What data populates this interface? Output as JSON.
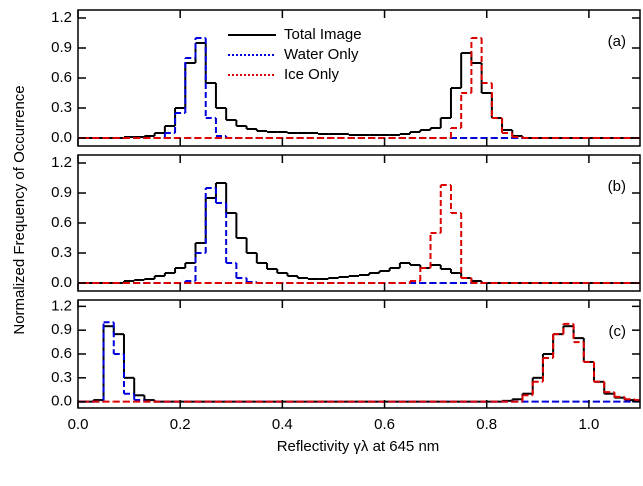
{
  "figure": {
    "xlabel": "Reflectivity γλ at 645 nm",
    "ylabel": "Normalized Frequency of Occurrence"
  },
  "chart_data": [
    {
      "type": "line",
      "panel_label": "(a)",
      "legend": true,
      "xtick_labels": false,
      "xlim": [
        0,
        1.1
      ],
      "ylim": [
        -0.08,
        1.28
      ],
      "xticks": [
        {
          "value": 0,
          "label": "0.0"
        },
        0.2,
        0.4,
        0.6,
        0.8,
        {
          "value": 1,
          "label": "1.0"
        }
      ],
      "yticks": [
        {
          "value": 0,
          "label": "0.0"
        },
        0.3,
        0.6,
        0.9,
        1.2
      ],
      "x": [
        0,
        0.02,
        0.04,
        0.06,
        0.08,
        0.1,
        0.12,
        0.14,
        0.16,
        0.18,
        0.2,
        0.22,
        0.24,
        0.26,
        0.28,
        0.3,
        0.32,
        0.34,
        0.36,
        0.38,
        0.4,
        0.42,
        0.44,
        0.46,
        0.48,
        0.5,
        0.52,
        0.54,
        0.56,
        0.58,
        0.6,
        0.62,
        0.64,
        0.66,
        0.68,
        0.7,
        0.72,
        0.74,
        0.76,
        0.78,
        0.8,
        0.82,
        0.84,
        0.86,
        0.88,
        0.9,
        0.92,
        0.94,
        0.96,
        0.98,
        1,
        1.02,
        1.04,
        1.06,
        1.08,
        1.1
      ],
      "series": [
        {
          "name": "Total Image",
          "color": "#000000",
          "linestyle": "solid",
          "values": [
            0,
            0,
            0,
            0,
            0,
            0.01,
            0.01,
            0.02,
            0.05,
            0.12,
            0.3,
            0.75,
            0.95,
            0.55,
            0.3,
            0.18,
            0.12,
            0.09,
            0.07,
            0.06,
            0.06,
            0.05,
            0.05,
            0.05,
            0.04,
            0.04,
            0.04,
            0.03,
            0.03,
            0.03,
            0.03,
            0.03,
            0.04,
            0.06,
            0.08,
            0.1,
            0.2,
            0.5,
            0.85,
            0.75,
            0.45,
            0.2,
            0.08,
            0.02,
            0,
            0,
            0,
            0,
            0,
            0,
            0,
            0,
            0,
            0,
            0,
            0
          ]
        },
        {
          "name": "Water Only",
          "color": "#0000dd",
          "linestyle": "dashed",
          "values": [
            0,
            0,
            0,
            0,
            0,
            0,
            0,
            0,
            0,
            0.05,
            0.25,
            0.8,
            1.0,
            0.2,
            0.02,
            0,
            0,
            0,
            0,
            0,
            0,
            0,
            0,
            0,
            0,
            0,
            0,
            0,
            0,
            0,
            0,
            0,
            0,
            0,
            0,
            0,
            0,
            0,
            0,
            0,
            0,
            0,
            0,
            0,
            0,
            0,
            0,
            0,
            0,
            0,
            0,
            0,
            0,
            0,
            0,
            0
          ]
        },
        {
          "name": "Ice Only",
          "color": "#dd0000",
          "linestyle": "dashed",
          "values": [
            0,
            0,
            0,
            0,
            0,
            0,
            0,
            0,
            0,
            0,
            0,
            0,
            0,
            0,
            0,
            0,
            0,
            0,
            0,
            0,
            0,
            0,
            0,
            0,
            0,
            0,
            0,
            0,
            0,
            0,
            0,
            0,
            0,
            0,
            0,
            0,
            0,
            0.1,
            0.45,
            1.0,
            0.55,
            0.2,
            0.05,
            0.01,
            0,
            0,
            0,
            0,
            0,
            0,
            0,
            0,
            0,
            0,
            0,
            0
          ]
        }
      ]
    },
    {
      "type": "line",
      "panel_label": "(b)",
      "legend": false,
      "xtick_labels": false,
      "xlim": [
        0,
        1.1
      ],
      "ylim": [
        -0.08,
        1.28
      ],
      "xticks": [
        {
          "value": 0,
          "label": "0.0"
        },
        0.2,
        0.4,
        0.6,
        0.8,
        {
          "value": 1,
          "label": "1.0"
        }
      ],
      "yticks": [
        {
          "value": 0,
          "label": "0.0"
        },
        0.3,
        0.6,
        0.9,
        1.2
      ],
      "x": [
        0,
        0.02,
        0.04,
        0.06,
        0.08,
        0.1,
        0.12,
        0.14,
        0.16,
        0.18,
        0.2,
        0.22,
        0.24,
        0.26,
        0.28,
        0.3,
        0.32,
        0.34,
        0.36,
        0.38,
        0.4,
        0.42,
        0.44,
        0.46,
        0.48,
        0.5,
        0.52,
        0.54,
        0.56,
        0.58,
        0.6,
        0.62,
        0.64,
        0.66,
        0.68,
        0.7,
        0.72,
        0.74,
        0.76,
        0.78,
        0.8,
        0.82,
        0.84,
        0.86,
        0.88,
        0.9,
        0.92,
        0.94,
        0.96,
        0.98,
        1,
        1.02,
        1.04,
        1.06,
        1.08,
        1.1
      ],
      "series": [
        {
          "name": "Total Image",
          "color": "#000000",
          "linestyle": "solid",
          "values": [
            0,
            0,
            0,
            0,
            0,
            0.02,
            0.03,
            0.04,
            0.07,
            0.1,
            0.15,
            0.2,
            0.4,
            0.85,
            1.0,
            0.7,
            0.45,
            0.3,
            0.2,
            0.14,
            0.1,
            0.07,
            0.05,
            0.04,
            0.04,
            0.05,
            0.06,
            0.07,
            0.08,
            0.1,
            0.12,
            0.15,
            0.2,
            0.18,
            0.15,
            0.18,
            0.14,
            0.1,
            0.05,
            0.02,
            0,
            0,
            0,
            0,
            0,
            0,
            0,
            0,
            0,
            0,
            0,
            0,
            0,
            0,
            0,
            0
          ]
        },
        {
          "name": "Water Only",
          "color": "#0000dd",
          "linestyle": "dashed",
          "values": [
            0,
            0,
            0,
            0,
            0,
            0,
            0,
            0,
            0,
            0,
            0,
            0.02,
            0.3,
            0.95,
            0.8,
            0.2,
            0.05,
            0.01,
            0,
            0,
            0,
            0,
            0,
            0,
            0,
            0,
            0,
            0,
            0,
            0,
            0,
            0,
            0,
            0,
            0,
            0,
            0,
            0,
            0,
            0,
            0,
            0,
            0,
            0,
            0,
            0,
            0,
            0,
            0,
            0,
            0,
            0,
            0,
            0,
            0,
            0
          ]
        },
        {
          "name": "Ice Only",
          "color": "#dd0000",
          "linestyle": "dashed",
          "values": [
            0,
            0,
            0,
            0,
            0,
            0,
            0,
            0,
            0,
            0,
            0,
            0,
            0,
            0,
            0,
            0,
            0,
            0,
            0,
            0,
            0,
            0,
            0,
            0,
            0,
            0,
            0,
            0,
            0,
            0,
            0,
            0,
            0,
            0.02,
            0.15,
            0.5,
            0.98,
            0.7,
            0.05,
            0,
            0,
            0,
            0,
            0,
            0,
            0,
            0,
            0,
            0,
            0,
            0,
            0,
            0,
            0,
            0,
            0
          ]
        }
      ]
    },
    {
      "type": "line",
      "panel_label": "(c)",
      "legend": false,
      "xtick_labels": true,
      "xlim": [
        0,
        1.1
      ],
      "ylim": [
        -0.08,
        1.28
      ],
      "xticks": [
        {
          "value": 0,
          "label": "0.0"
        },
        0.2,
        0.4,
        0.6,
        0.8,
        {
          "value": 1,
          "label": "1.0"
        }
      ],
      "yticks": [
        {
          "value": 0,
          "label": "0.0"
        },
        0.3,
        0.6,
        0.9,
        1.2
      ],
      "x": [
        0,
        0.02,
        0.04,
        0.06,
        0.08,
        0.1,
        0.12,
        0.14,
        0.16,
        0.18,
        0.2,
        0.22,
        0.24,
        0.26,
        0.28,
        0.3,
        0.32,
        0.34,
        0.36,
        0.38,
        0.4,
        0.42,
        0.44,
        0.46,
        0.48,
        0.5,
        0.52,
        0.54,
        0.56,
        0.58,
        0.6,
        0.62,
        0.64,
        0.66,
        0.68,
        0.7,
        0.72,
        0.74,
        0.76,
        0.78,
        0.8,
        0.82,
        0.84,
        0.86,
        0.88,
        0.9,
        0.92,
        0.94,
        0.96,
        0.98,
        1,
        1.02,
        1.04,
        1.06,
        1.08,
        1.1
      ],
      "series": [
        {
          "name": "Total Image",
          "color": "#000000",
          "linestyle": "solid",
          "values": [
            0,
            0,
            0.02,
            0.95,
            0.85,
            0.3,
            0.08,
            0.02,
            0,
            0,
            0,
            0,
            0,
            0,
            0,
            0,
            0,
            0,
            0,
            0,
            0,
            0,
            0,
            0,
            0,
            0,
            0,
            0,
            0,
            0,
            0,
            0,
            0,
            0,
            0,
            0,
            0,
            0,
            0,
            0,
            0,
            0,
            0.01,
            0.03,
            0.1,
            0.3,
            0.6,
            0.85,
            0.95,
            0.8,
            0.5,
            0.25,
            0.1,
            0.05,
            0.02,
            0.01
          ]
        },
        {
          "name": "Water Only",
          "color": "#0000dd",
          "linestyle": "dashed",
          "values": [
            0,
            0,
            0,
            1.0,
            0.6,
            0.1,
            0.02,
            0,
            0,
            0,
            0,
            0,
            0,
            0,
            0,
            0,
            0,
            0,
            0,
            0,
            0,
            0,
            0,
            0,
            0,
            0,
            0,
            0,
            0,
            0,
            0,
            0,
            0,
            0,
            0,
            0,
            0,
            0,
            0,
            0,
            0,
            0,
            0,
            0,
            0,
            0,
            0,
            0,
            0,
            0,
            0,
            0,
            0,
            0,
            0,
            0
          ]
        },
        {
          "name": "Ice Only",
          "color": "#dd0000",
          "linestyle": "dashed",
          "values": [
            0,
            0,
            0,
            0,
            0,
            0,
            0,
            0,
            0,
            0,
            0,
            0,
            0,
            0,
            0,
            0,
            0,
            0,
            0,
            0,
            0,
            0,
            0,
            0,
            0,
            0,
            0,
            0,
            0,
            0,
            0,
            0,
            0,
            0,
            0,
            0,
            0,
            0,
            0,
            0,
            0,
            0,
            0,
            0,
            0.08,
            0.25,
            0.55,
            0.85,
            0.98,
            0.75,
            0.5,
            0.25,
            0.12,
            0.06,
            0.03,
            0.02
          ]
        }
      ]
    }
  ]
}
